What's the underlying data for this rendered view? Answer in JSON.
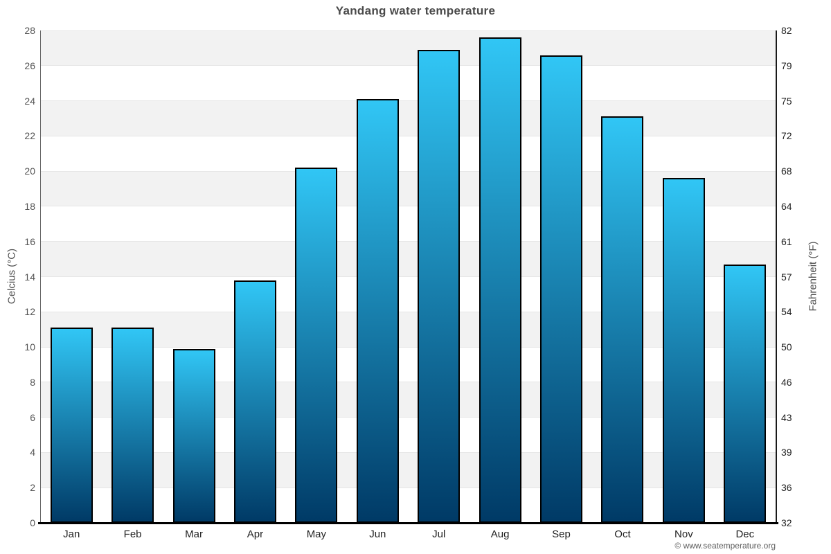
{
  "chart_data": {
    "type": "bar",
    "title": "Yandang water temperature",
    "categories": [
      "Jan",
      "Feb",
      "Mar",
      "Apr",
      "May",
      "Jun",
      "Jul",
      "Aug",
      "Sep",
      "Oct",
      "Nov",
      "Dec"
    ],
    "values": [
      11.1,
      11.1,
      9.9,
      13.8,
      20.2,
      24.1,
      26.9,
      27.6,
      26.6,
      23.1,
      19.6,
      14.7
    ],
    "ylabel_left": "Celcius (°C)",
    "ylabel_right": "Fahrenheit (°F)",
    "y_left_ticks": [
      0,
      2,
      4,
      6,
      8,
      10,
      12,
      14,
      16,
      18,
      20,
      22,
      24,
      26,
      28
    ],
    "y_right_ticks": [
      32,
      36,
      39,
      43,
      46,
      50,
      54,
      57,
      61,
      64,
      68,
      72,
      75,
      79,
      82
    ],
    "ylim": [
      0,
      28
    ],
    "grid": true,
    "legend": "none",
    "colors": {
      "bar_gradient_top": "#31c6f5",
      "bar_gradient_bottom": "#003a66",
      "bar_border": "#000000",
      "band_fill": "#f2f2f2",
      "gridline": "#e6e6e6",
      "axis_side_left": "#666666",
      "axis_side_right": "#1a1a1a"
    }
  },
  "footer": {
    "copyright": "© www.seatemperature.org"
  }
}
